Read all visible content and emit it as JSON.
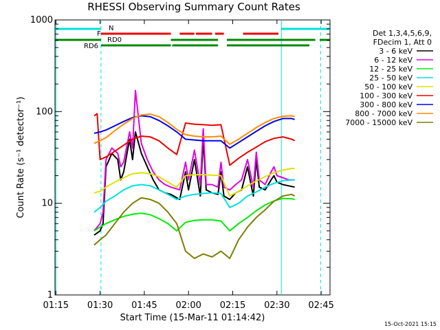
{
  "chart_data": {
    "type": "line",
    "title": "RHESSI Observing Summary Count Rates",
    "xlabel": "Start Time (15-Mar-11 01:14:42)",
    "ylabel": "Count Rate (s⁻¹ detector⁻¹)",
    "yscale": "log",
    "ylim": [
      1,
      1000
    ],
    "xlim_minutes": [
      74.7,
      168
    ],
    "x_tick_minutes": [
      75,
      90,
      105,
      120,
      135,
      150,
      165
    ],
    "x_tick_labels": [
      "01:15",
      "01:30",
      "01:45",
      "02:00",
      "02:15",
      "02:30",
      "02:45"
    ],
    "y_ticks": [
      1,
      10,
      100,
      1000
    ],
    "y_tick_labels": [
      "1",
      "10",
      "100",
      "1000"
    ],
    "legend_header": [
      "Det 1,3,4,5,6,9,",
      "FDecim 1, Att 0"
    ],
    "legend_position": "right",
    "series": [
      {
        "name": "3 - 6 keV",
        "color": "#000000",
        "x": [
          88,
          90,
          91,
          92,
          94,
          96,
          97,
          98,
          100,
          101,
          102,
          104,
          106,
          108,
          110,
          112,
          114,
          117,
          119,
          120,
          122,
          124,
          125,
          126,
          128,
          130,
          131,
          132,
          134,
          136,
          138,
          140,
          142,
          143,
          144,
          146,
          148,
          149,
          150,
          152,
          154,
          156
        ],
        "y": [
          4.5,
          5,
          6,
          25,
          35,
          30,
          18,
          22,
          50,
          30,
          60,
          35,
          25,
          18,
          14,
          13,
          12.5,
          11,
          22,
          14,
          30,
          12,
          50,
          14,
          13,
          12.5,
          22,
          12,
          11,
          13,
          14,
          25,
          12,
          30,
          15,
          14,
          18,
          20,
          17,
          16,
          15.5,
          15
        ]
      },
      {
        "name": "6 - 12 keV",
        "color": "#e000e0",
        "x": [
          88,
          90,
          91,
          92,
          94,
          96,
          97,
          98,
          100,
          101,
          102,
          104,
          106,
          108,
          110,
          112,
          114,
          117,
          119,
          120,
          122,
          124,
          125,
          126,
          128,
          130,
          131,
          132,
          134,
          136,
          138,
          140,
          142,
          143,
          144,
          146,
          148,
          149,
          150,
          152,
          154,
          156
        ],
        "y": [
          5,
          6,
          8,
          30,
          40,
          35,
          25,
          28,
          60,
          40,
          170,
          45,
          30,
          22,
          18,
          16,
          15,
          14,
          28,
          18,
          38,
          16,
          65,
          16,
          16,
          15,
          28,
          15,
          14,
          16,
          18,
          30,
          15,
          36,
          18,
          16,
          22,
          25,
          20,
          19,
          18,
          18
        ]
      },
      {
        "name": "12 - 25 keV",
        "color": "#00ee00",
        "x": [
          88,
          90,
          92,
          95,
          98,
          101,
          104,
          107,
          110,
          113,
          116,
          119,
          122,
          125,
          128,
          131,
          134,
          137,
          140,
          143,
          146,
          149,
          152,
          155,
          156
        ],
        "y": [
          5,
          5.5,
          6,
          6.6,
          7.2,
          7.6,
          7.8,
          7.5,
          6.8,
          6,
          5,
          6.2,
          6.5,
          6.6,
          6.6,
          6.4,
          5,
          6,
          7,
          8.3,
          9.6,
          10.6,
          11.3,
          11.2,
          11
        ]
      },
      {
        "name": "25 - 50 keV",
        "color": "#00e0e0",
        "x": [
          88,
          90,
          92,
          95,
          98,
          101,
          104,
          107,
          110,
          113,
          116,
          119,
          122,
          125,
          128,
          131,
          134,
          137,
          140,
          143,
          146,
          149,
          152,
          155,
          156
        ],
        "y": [
          8,
          9,
          10.5,
          12,
          14,
          15.5,
          16,
          15.5,
          14,
          12.5,
          11,
          12,
          12.5,
          12.8,
          13,
          12.8,
          9,
          10,
          12,
          13.3,
          15,
          16.5,
          17.6,
          18,
          18
        ]
      },
      {
        "name": "50 - 100 keV",
        "color": "#e0e000",
        "x": [
          88,
          90,
          92,
          95,
          98,
          101,
          104,
          107,
          110,
          113,
          116,
          119,
          122,
          125,
          128,
          131,
          134,
          137,
          140,
          143,
          146,
          149,
          152,
          155,
          156
        ],
        "y": [
          13,
          13.5,
          15,
          17,
          19,
          21,
          21.5,
          21,
          19.5,
          17,
          15,
          20,
          20.5,
          20.5,
          20.3,
          20,
          12,
          13.5,
          15.5,
          17.5,
          19.5,
          21.5,
          23,
          24,
          24
        ]
      },
      {
        "name": "100 - 300 keV",
        "color": "#ee0000",
        "x": [
          88,
          89,
          90,
          92,
          95,
          98,
          101,
          104,
          107,
          110,
          113,
          116,
          119,
          122,
          125,
          128,
          131,
          134,
          137,
          140,
          143,
          146,
          149,
          152,
          155,
          156
        ],
        "y": [
          90,
          95,
          30,
          32,
          37,
          43,
          50,
          54,
          53,
          48,
          40,
          34,
          75,
          73,
          72,
          71,
          72,
          26,
          31,
          36,
          41,
          47,
          51,
          53,
          50,
          48
        ]
      },
      {
        "name": "300 - 800 keV",
        "color": "#0000ee",
        "x": [
          88,
          90,
          92,
          95,
          98,
          101,
          104,
          107,
          110,
          113,
          116,
          119,
          122,
          125,
          128,
          131,
          134,
          137,
          140,
          143,
          146,
          149,
          152,
          155,
          156
        ],
        "y": [
          58,
          60,
          63,
          70,
          78,
          86,
          90,
          88,
          80,
          70,
          60,
          50,
          49,
          48,
          48,
          48,
          40,
          46,
          53,
          61,
          70,
          78,
          84,
          84,
          82
        ]
      },
      {
        "name": "800 - 7000 keV",
        "color": "#ff8c00",
        "x": [
          88,
          90,
          92,
          95,
          98,
          101,
          104,
          107,
          110,
          113,
          116,
          119,
          122,
          125,
          128,
          131,
          134,
          137,
          140,
          143,
          146,
          149,
          152,
          155,
          156
        ],
        "y": [
          45,
          48,
          52,
          62,
          73,
          84,
          92,
          94,
          88,
          76,
          64,
          56,
          54,
          53,
          53,
          54,
          44,
          50,
          58,
          67,
          76,
          84,
          89,
          90,
          88
        ]
      },
      {
        "name": "7000 - 15000 keV",
        "color": "#7d7d00",
        "x": [
          88,
          90,
          92,
          95,
          98,
          101,
          104,
          107,
          110,
          113,
          116,
          119,
          122,
          125,
          128,
          131,
          134,
          137,
          140,
          143,
          146,
          149,
          152,
          155,
          156
        ],
        "y": [
          3.5,
          4,
          4.5,
          6,
          8,
          10,
          11.5,
          11,
          10,
          8,
          6,
          3,
          2.5,
          2.8,
          2.6,
          3,
          2.5,
          4,
          5.5,
          7,
          8.5,
          10.5,
          12,
          12.5,
          12
        ]
      }
    ],
    "flags": [
      {
        "name": "N",
        "color": "#00e0e0",
        "segments": [
          [
            74.7,
            90.3
          ],
          [
            151.5,
            168
          ]
        ]
      },
      {
        "name": "F",
        "color": "#ee0000",
        "segments": [
          [
            90.3,
            114
          ],
          [
            117,
            122
          ],
          [
            122.5,
            128
          ],
          [
            129,
            132
          ],
          [
            138.5,
            150.5
          ]
        ]
      },
      {
        "name": "RD0",
        "color": "#008800",
        "segments": [
          [
            74.7,
            90.3
          ],
          [
            114,
            130
          ],
          [
            133,
            163
          ],
          [
            164.5,
            168
          ]
        ]
      },
      {
        "name": "RD6",
        "color": "#008800",
        "segments": [
          [
            90.3,
            114
          ],
          [
            114.5,
            130
          ],
          [
            133,
            161
          ]
        ]
      }
    ],
    "vlines": [
      {
        "x": 75,
        "color": "#00e0e0",
        "style": "solid"
      },
      {
        "x": 90.3,
        "color": "#00e0e0",
        "style": "dashed"
      },
      {
        "x": 151.5,
        "color": "#00e0e0",
        "style": "solid"
      },
      {
        "x": 164.8,
        "color": "#00e0e0",
        "style": "dashed"
      }
    ],
    "footer_date": "15-Oct-2021 15:15"
  }
}
